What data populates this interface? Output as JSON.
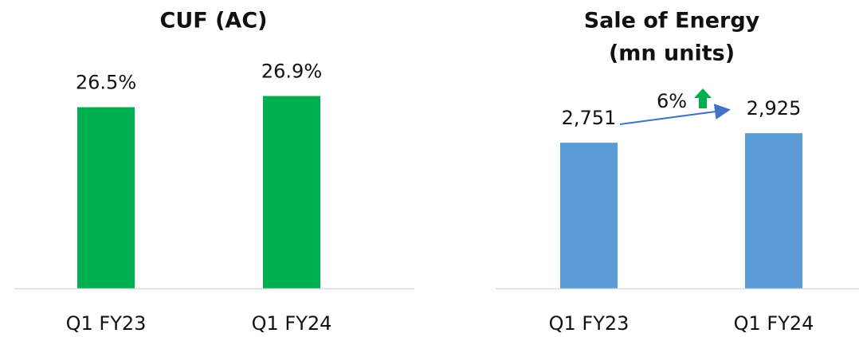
{
  "chart_data": [
    {
      "type": "bar",
      "title": [
        "CUF (AC)"
      ],
      "categories": [
        "Q1 FY23",
        "Q1 FY24"
      ],
      "values": [
        26.5,
        26.9
      ],
      "value_labels": [
        "26.5%",
        "26.9%"
      ],
      "color": "#00b050",
      "ylim": [
        20,
        28
      ]
    },
    {
      "type": "bar",
      "title": [
        "Sale of Energy",
        "(mn units)"
      ],
      "categories": [
        "Q1 FY23",
        "Q1 FY24"
      ],
      "values": [
        2751,
        2925
      ],
      "value_labels": [
        "2,751",
        "2,925"
      ],
      "color": "#5b9bd5",
      "ylim": [
        100,
        3000
      ],
      "annotation": "6%"
    }
  ]
}
